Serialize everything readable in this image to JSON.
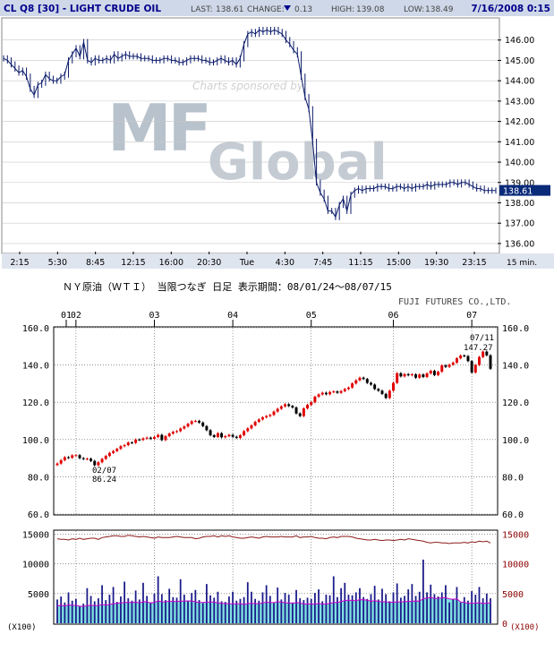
{
  "header": {
    "symbol": "CL Q8 [30] - LIGHT CRUDE OIL",
    "last_label": "LAST:",
    "last_value": "138.61",
    "change_label": "CHANGE:",
    "change_value": "0.13",
    "high_label": "HIGH:",
    "high_value": "139.08",
    "low_label": "LOW:",
    "low_value": "138.49",
    "datetime": "7/16/2008 0:15"
  },
  "watermark": {
    "sponsor_text": "Charts sponsored by:",
    "logo_text_1": "MF",
    "logo_text_2": "Global"
  },
  "top_x_unit": "15 min.",
  "bottom_title": "ＮＹ原油（ＷＴＩ） 当限つなぎ 日足  表示期間：08/01/24～08/07/15",
  "bottom_credit": "FUJI FUTURES CO.,LTD.",
  "annotations": {
    "high_date": "07/11",
    "high_value": "147.27",
    "low_date": "02/07",
    "low_value": "86.24"
  },
  "volume_unit_left": "(X100)",
  "volume_unit_right": "(X100)",
  "colors": {
    "header_bg": "#cfd8e8",
    "price_line": "#0a1a6a",
    "last_badge": "#0a2a7a",
    "grid": "#c8c8c8",
    "up_candle": "#e00000",
    "down_candle": "#000000",
    "axis_text": "#000000",
    "right_axis_text": "#8b0000",
    "volume_bar": "#1a1a8a",
    "volume_fill": "#7fe0e0",
    "volume_ma": "#cc00cc",
    "open_interest": "#8b1a1a"
  },
  "chart_data": [
    {
      "type": "line",
      "title": "CL Q8 [30] - LIGHT CRUDE OIL",
      "x_ticks": [
        "2:15",
        "5:30",
        "8:45",
        "12:15",
        "16:00",
        "20:30",
        "Tue",
        "4:30",
        "7:45",
        "11:15",
        "15:00",
        "19:30",
        "23:15"
      ],
      "y_ticks": [
        "146.00",
        "145.00",
        "144.00",
        "143.00",
        "142.00",
        "141.00",
        "140.00",
        "139.00",
        "138.00",
        "137.00",
        "136.00"
      ],
      "ylim": [
        135.6,
        147.0
      ],
      "last_price": 138.61,
      "series": [
        {
          "values": [
            145.1,
            145.0,
            144.8,
            144.6,
            144.4,
            144.5,
            144.2,
            143.6,
            143.3,
            143.8,
            143.9,
            144.3,
            144.1,
            144.0,
            144.0,
            144.2,
            144.3,
            145.0,
            145.3,
            145.6,
            145.2,
            145.9,
            145.0,
            144.9,
            145.1,
            145.0,
            145.0,
            145.1,
            145.0,
            145.3,
            145.1,
            145.2,
            145.3,
            145.2,
            145.2,
            145.2,
            145.1,
            145.1,
            145.1,
            145.0,
            145.0,
            145.0,
            145.1,
            145.1,
            145.0,
            145.0,
            144.9,
            144.9,
            145.0,
            145.1,
            145.1,
            145.1,
            145.0,
            145.0,
            144.9,
            144.9,
            145.0,
            145.1,
            145.0,
            144.9,
            145.0,
            144.8,
            145.1,
            145.8,
            146.3,
            146.4,
            146.3,
            146.5,
            146.4,
            146.5,
            146.4,
            146.5,
            146.4,
            146.3,
            146.0,
            145.8,
            145.5,
            145.3,
            144.2,
            143.2,
            142.6,
            141.0,
            139.0,
            138.5,
            138.2,
            137.6,
            137.6,
            137.3,
            137.9,
            138.2,
            137.6,
            138.4,
            138.6,
            138.7,
            138.6,
            138.7,
            138.7,
            138.7,
            138.8,
            138.8,
            138.8,
            138.7,
            138.7,
            138.8,
            138.8,
            138.7,
            138.8,
            138.7,
            138.8,
            138.8,
            138.8,
            138.9,
            138.8,
            138.9,
            138.9,
            138.9,
            138.9,
            139.0,
            139.0,
            138.9,
            139.0,
            139.0,
            138.9,
            138.8,
            138.7,
            138.7,
            138.6,
            138.6,
            138.6,
            138.6
          ]
        }
      ]
    },
    {
      "type": "candlestick",
      "title": "ＮＹ原油（ＷＴＩ） 当限つなぎ 日足",
      "x_ticks": [
        "01",
        "02",
        "03",
        "04",
        "05",
        "06",
        "07"
      ],
      "y_ticks": [
        "160.0",
        "140.0",
        "120.0",
        "100.0",
        "80.0",
        "60.0"
      ],
      "ylim": [
        60,
        160
      ],
      "series": [
        {
          "name": "close",
          "values": [
            87.1,
            88.9,
            90.5,
            90.2,
            91.5,
            91.6,
            90.0,
            89.5,
            89.7,
            88.5,
            86.2,
            87.8,
            89.6,
            91.2,
            92.8,
            93.8,
            95.0,
            96.4,
            97.0,
            98.4,
            98.2,
            100.0,
            99.8,
            100.6,
            101.0,
            100.4,
            101.3,
            102.5,
            99.7,
            101.8,
            103.2,
            104.1,
            104.5,
            105.9,
            107.0,
            108.4,
            109.8,
            110.0,
            109.1,
            107.2,
            105.0,
            102.3,
            101.4,
            103.4,
            101.2,
            101.8,
            102.5,
            101.5,
            100.9,
            102.3,
            104.5,
            106.0,
            107.6,
            109.5,
            110.8,
            111.9,
            112.6,
            113.2,
            115.0,
            116.5,
            117.8,
            118.9,
            118.0,
            117.2,
            114.0,
            112.6,
            116.7,
            118.6,
            120.0,
            123.0,
            124.2,
            125.1,
            124.3,
            125.5,
            125.8,
            125.1,
            126.0,
            127.1,
            127.9,
            130.1,
            131.8,
            133.2,
            132.5,
            130.4,
            129.5,
            127.1,
            126.2,
            124.5,
            122.3,
            126.2,
            130.4,
            135.6,
            133.9,
            135.1,
            134.5,
            135.0,
            133.2,
            134.9,
            133.6,
            135.5,
            136.9,
            134.6,
            136.4,
            139.8,
            139.0,
            140.2,
            141.3,
            143.6,
            145.1,
            144.8,
            142.1,
            136.0,
            140.0,
            144.3,
            147.2,
            145.2,
            138.0
          ]
        },
        {
          "name": "volume",
          "values": [
            4000,
            4500,
            3500,
            5200,
            3800,
            4100,
            2800,
            3300,
            5900,
            4600,
            3700,
            4200,
            6400,
            3900,
            4800,
            6100,
            3600,
            4500,
            7000,
            4200,
            3800,
            5500,
            4000,
            6800,
            4600,
            3500,
            5000,
            7900,
            4900,
            3900,
            5800,
            4400,
            4300,
            7400,
            4800,
            3800,
            5100,
            5600,
            3900,
            3400,
            6600,
            4700,
            4300,
            5300,
            3700,
            3600,
            4500,
            5300,
            3800,
            4100,
            4400,
            6900,
            5300,
            4100,
            3800,
            5200,
            6400,
            4600,
            3400,
            6000,
            4000,
            5100,
            4800,
            3500,
            5600,
            4200,
            3900,
            4300,
            4100,
            5100,
            5700,
            3700,
            4800,
            4700,
            7900,
            4400,
            5900,
            6800,
            4800,
            4700,
            5200,
            5900,
            4400,
            4100,
            4900,
            6300,
            4000,
            5800,
            4900,
            3700,
            5200,
            6700,
            4300,
            4600,
            5700,
            6600,
            4600,
            5300,
            10700,
            5200,
            6500,
            4900,
            4500,
            5200,
            6400,
            3500,
            4000,
            6100,
            3500,
            4400,
            3800,
            5400,
            4800,
            6100,
            4200,
            5000,
            4200
          ]
        },
        {
          "name": "open_interest",
          "values": [
            14200,
            14100,
            14100,
            14000,
            14200,
            14100,
            14300,
            14100,
            14200,
            14300,
            14300,
            14100,
            14400,
            14500,
            14600,
            14700,
            14700,
            14600,
            14600,
            14800,
            14700,
            14600,
            14500,
            14600,
            14500,
            14400,
            14300,
            14500,
            14400,
            14400,
            14400,
            14500,
            14600,
            14500,
            14400,
            14400,
            14400,
            14200,
            14300,
            14500,
            14600,
            14600,
            14700,
            14500,
            14700,
            14600,
            14700,
            14500,
            14400,
            14300,
            14300,
            14400,
            14500,
            14400,
            14300,
            14500,
            14600,
            14500,
            14500,
            14500,
            14600,
            14500,
            14500,
            14500,
            14700,
            14400,
            14500,
            14500,
            14600,
            14400,
            14300,
            14300,
            14200,
            14400,
            14500,
            14400,
            14600,
            14600,
            14600,
            14500,
            14300,
            14200,
            14100,
            14000,
            14000,
            14100,
            14000,
            13900,
            14000,
            14000,
            13900,
            14000,
            14100,
            14000,
            14200,
            14100,
            14000,
            13900,
            13800,
            13600,
            13500,
            13600,
            13600,
            13500,
            13500,
            13400,
            13500,
            13500,
            13500,
            13600,
            13500,
            13700,
            13600,
            13800,
            13700,
            13800,
            13500
          ]
        }
      ],
      "volume_y_ticks": [
        "15000",
        "10000",
        "5000"
      ],
      "volume_y_ticks_right": [
        "15000",
        "10000",
        "5000",
        "0"
      ],
      "volume_ylim": [
        0,
        15500
      ]
    }
  ]
}
